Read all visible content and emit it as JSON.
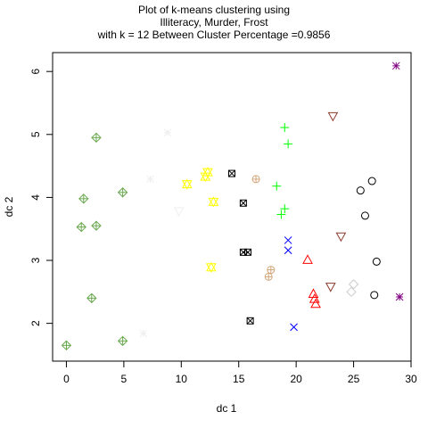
{
  "chart_data": {
    "type": "scatter",
    "title_lines": [
      "Plot of k-means clustering using",
      "Illiteracy, Murder, Frost",
      "with  k = 12 Between Cluster Percentage =0.9856"
    ],
    "xlabel": "dc 1",
    "ylabel": "dc 2",
    "xlim": [
      -1.2,
      30.0
    ],
    "ylim": [
      1.4,
      6.3
    ],
    "xticks": [
      0,
      5,
      10,
      15,
      20,
      25,
      30
    ],
    "yticks": [
      2,
      3,
      4,
      5,
      6
    ],
    "grid": false,
    "series": [
      {
        "color": "#6aa84f",
        "symbol": "diamond-plus",
        "points": [
          [
            0.0,
            1.65
          ],
          [
            1.3,
            3.53
          ],
          [
            1.5,
            3.98
          ],
          [
            2.2,
            2.4
          ],
          [
            2.6,
            3.55
          ],
          [
            2.6,
            4.95
          ],
          [
            4.9,
            4.08
          ],
          [
            4.9,
            1.72
          ]
        ]
      },
      {
        "color": "#eeeeee",
        "symbol": "asterisk",
        "points": [
          [
            6.7,
            1.84
          ],
          [
            7.3,
            4.29
          ],
          [
            8.8,
            5.03
          ]
        ]
      },
      {
        "color": "#eeeeee",
        "symbol": "triangle-down",
        "points": [
          [
            9.8,
            3.78
          ]
        ]
      },
      {
        "color": "#ffff00",
        "symbol": "star-of-david",
        "points": [
          [
            10.5,
            4.21
          ],
          [
            12.1,
            4.33
          ],
          [
            12.3,
            4.4
          ],
          [
            12.6,
            2.89
          ],
          [
            12.8,
            3.93
          ]
        ]
      },
      {
        "color": "#000000",
        "symbol": "square-cross",
        "points": [
          [
            14.4,
            4.38
          ],
          [
            15.4,
            3.91
          ],
          [
            15.4,
            3.13
          ],
          [
            15.8,
            3.13
          ],
          [
            16.0,
            2.04
          ]
        ]
      },
      {
        "color": "#d2a679",
        "symbol": "circle-plus",
        "points": [
          [
            16.5,
            4.29
          ],
          [
            17.6,
            2.74
          ],
          [
            17.8,
            2.85
          ]
        ]
      },
      {
        "color": "#00ff00",
        "symbol": "plus",
        "points": [
          [
            18.3,
            4.18
          ],
          [
            18.7,
            3.73
          ],
          [
            19.0,
            5.11
          ],
          [
            19.0,
            3.82
          ],
          [
            19.3,
            4.85
          ]
        ]
      },
      {
        "color": "#0000ff",
        "symbol": "x",
        "points": [
          [
            19.3,
            3.32
          ],
          [
            19.3,
            3.16
          ],
          [
            19.8,
            1.94
          ]
        ]
      },
      {
        "color": "#ff0000",
        "symbol": "triangle",
        "points": [
          [
            21.0,
            3.01
          ],
          [
            21.5,
            2.47
          ],
          [
            21.6,
            2.39
          ],
          [
            21.7,
            2.31
          ]
        ]
      },
      {
        "color": "#8b3a2b",
        "symbol": "triangle-down",
        "points": [
          [
            23.0,
            2.58
          ],
          [
            23.2,
            5.29
          ],
          [
            23.9,
            3.38
          ]
        ]
      },
      {
        "color": "#cccccc",
        "symbol": "diamond",
        "points": [
          [
            24.8,
            2.5
          ],
          [
            25.0,
            2.62
          ]
        ]
      },
      {
        "color": "#000000",
        "symbol": "circle",
        "points": [
          [
            25.6,
            4.11
          ],
          [
            26.0,
            3.71
          ],
          [
            26.6,
            4.26
          ],
          [
            26.8,
            2.45
          ],
          [
            27.0,
            2.98
          ]
        ]
      },
      {
        "color": "#800080",
        "symbol": "asterisk",
        "points": [
          [
            28.7,
            6.09
          ],
          [
            29.0,
            2.42
          ]
        ]
      }
    ]
  }
}
